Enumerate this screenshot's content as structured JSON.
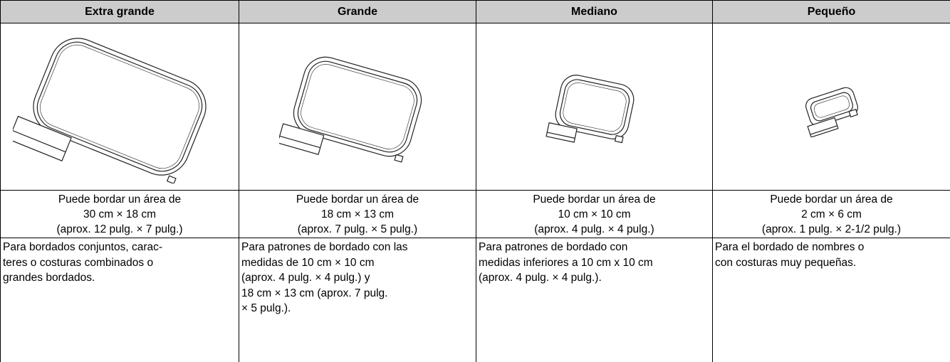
{
  "table": {
    "headers": [
      "Extra grande",
      "Grande",
      "Mediano",
      "Pequeño"
    ],
    "areas": [
      [
        "Puede bordar un área de",
        "30 cm × 18 cm",
        "(aprox. 12 pulg. × 7 pulg.)"
      ],
      [
        "Puede bordar un área de",
        "18 cm × 13 cm",
        "(aprox. 7 pulg. × 5 pulg.)"
      ],
      [
        "Puede bordar un área de",
        "10 cm × 10 cm",
        "(aprox. 4 pulg. × 4 pulg.)"
      ],
      [
        "Puede bordar un área de",
        "2 cm × 6 cm",
        "(aprox. 1 pulg. × 2-1/2 pulg.)"
      ]
    ],
    "descriptions": [
      [
        "Para bordados conjuntos, carac-",
        "teres o costuras combinados o",
        "grandes bordados."
      ],
      [
        "Para patrones de bordado con las",
        "medidas de 10 cm × 10 cm",
        "(aprox. 4 pulg. × 4 pulg.) y",
        "18 cm × 13 cm (aprox. 7 pulg.",
        "× 5 pulg.)."
      ],
      [
        "Para patrones de bordado con",
        "medidas inferiores a 10 cm x 10 cm",
        "(aprox. 4 pulg. × 4 pulg.)."
      ],
      [
        "Para el bordado de nombres o",
        "con costuras muy pequeñas."
      ]
    ]
  }
}
